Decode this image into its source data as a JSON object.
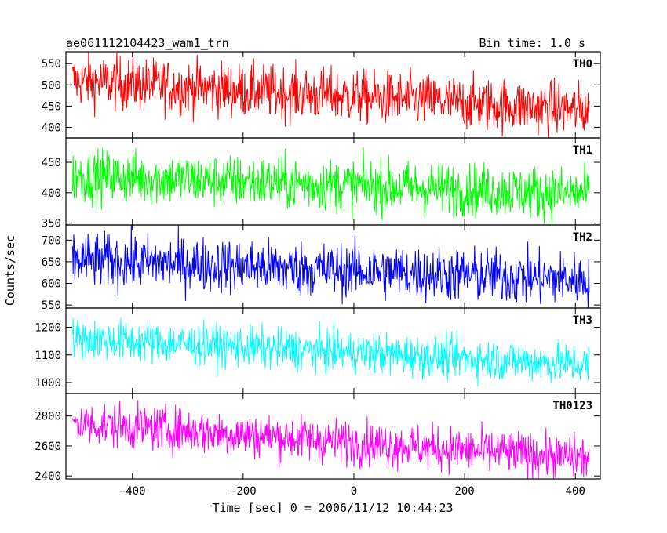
{
  "header": {
    "title": "ae061112104423_wam1_trn",
    "bin_time": "Bin time: 1.0 s"
  },
  "chart_data": {
    "type": "line",
    "xlabel": "Time [sec] 0 = 2006/11/12 10:44:23",
    "ylabel": "Counts/sec",
    "xlim": [
      -520,
      445
    ],
    "x_range": [
      -508,
      425
    ],
    "x_ticks": [
      -400,
      -200,
      0,
      200,
      400
    ],
    "x_tick_labels": [
      "−400",
      "−200",
      "0",
      "200",
      "400"
    ],
    "panels": [
      {
        "name": "TH0",
        "color": "#ff0000",
        "ylim": [
          375,
          578
        ],
        "y_ticks": [
          400,
          450,
          500,
          550
        ],
        "trend": [
          510,
          440
        ],
        "noise": 32
      },
      {
        "name": "TH1",
        "color": "#00ff00",
        "ylim": [
          347,
          490
        ],
        "y_ticks": [
          350,
          400,
          450
        ],
        "trend": [
          428,
          398
        ],
        "noise": 22
      },
      {
        "name": "TH2",
        "color": "#0000ff",
        "ylim": [
          543,
          735
        ],
        "y_ticks": [
          550,
          600,
          650,
          700
        ],
        "trend": [
          655,
          608
        ],
        "noise": 32
      },
      {
        "name": "TH3",
        "color": "#00ffff",
        "ylim": [
          960,
          1270
        ],
        "y_ticks": [
          1000,
          1100,
          1200
        ],
        "trend": [
          1160,
          1065
        ],
        "noise": 38
      },
      {
        "name": "TH0123",
        "color": "#ff00ff",
        "ylim": [
          2380,
          2950
        ],
        "y_ticks": [
          2400,
          2600,
          2800
        ],
        "trend": [
          2755,
          2515
        ],
        "noise": 75
      }
    ]
  }
}
